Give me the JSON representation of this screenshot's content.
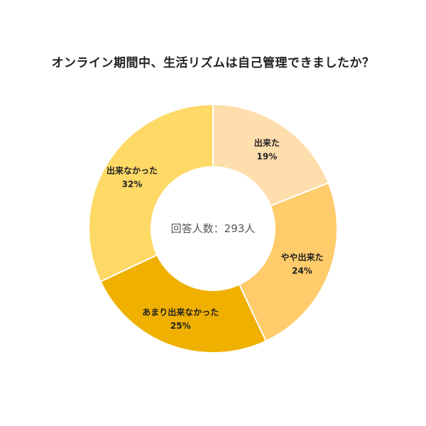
{
  "chart_data": {
    "type": "pie",
    "title": "オンライン期間中、生活リズムは自己管理できましたか？",
    "center_label": "回答人数：293人",
    "donut": true,
    "slices": [
      {
        "label": "出来た",
        "value": 19,
        "value_label": "19%",
        "color": "#FFDEAD"
      },
      {
        "label": "やや出来た",
        "value": 24,
        "value_label": "24%",
        "color": "#FFCB6B"
      },
      {
        "label": "あまり出来なかった",
        "value": 25,
        "value_label": "25%",
        "color": "#F0B000"
      },
      {
        "label": "出来なかった",
        "value": 32,
        "value_label": "32%",
        "color": "#FFD966"
      }
    ]
  }
}
